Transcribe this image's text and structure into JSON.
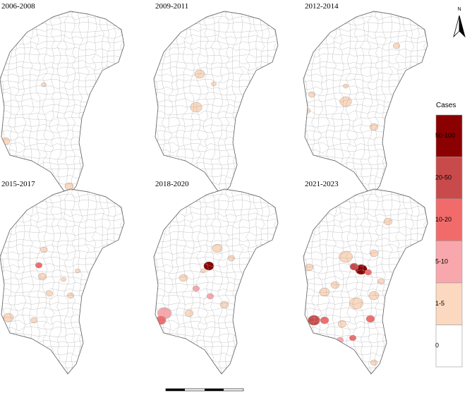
{
  "panels": [
    {
      "title": "2006-2008"
    },
    {
      "title": "2009-2011"
    },
    {
      "title": "2012-2014"
    },
    {
      "title": "2015-2017"
    },
    {
      "title": "2018-2020"
    },
    {
      "title": "2021-2023"
    }
  ],
  "legend": {
    "title": "Cases",
    "items": [
      {
        "label": "50-100",
        "color": "#8b0000"
      },
      {
        "label": "20-50",
        "color": "#c94a4a"
      },
      {
        "label": "10-20",
        "color": "#f26b6b"
      },
      {
        "label": "5-10",
        "color": "#f8a8ad"
      },
      {
        "label": "1-5",
        "color": "#fbd8bf"
      },
      {
        "label": "0",
        "color": "#ffffff"
      }
    ]
  },
  "north": "N"
}
